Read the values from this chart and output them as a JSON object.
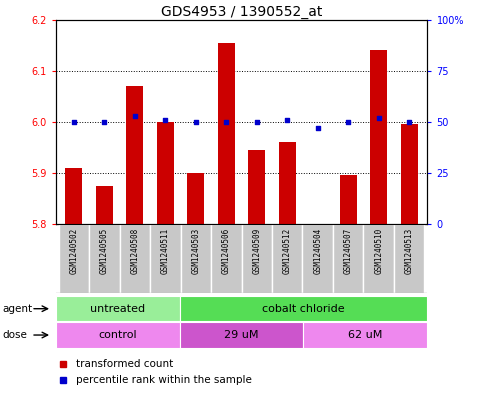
{
  "title": "GDS4953 / 1390552_at",
  "samples": [
    "GSM1240502",
    "GSM1240505",
    "GSM1240508",
    "GSM1240511",
    "GSM1240503",
    "GSM1240506",
    "GSM1240509",
    "GSM1240512",
    "GSM1240504",
    "GSM1240507",
    "GSM1240510",
    "GSM1240513"
  ],
  "red_values": [
    5.91,
    5.875,
    6.07,
    6.0,
    5.9,
    6.155,
    5.945,
    5.96,
    5.8,
    5.895,
    6.14,
    5.995
  ],
  "blue_percentile": [
    50,
    50,
    53,
    51,
    50,
    50,
    50,
    51,
    47,
    50,
    52,
    50
  ],
  "ylim_left": [
    5.8,
    6.2
  ],
  "ylim_right": [
    0,
    100
  ],
  "yticks_left": [
    5.8,
    5.9,
    6.0,
    6.1,
    6.2
  ],
  "yticks_right": [
    0,
    25,
    50,
    75,
    100
  ],
  "ytick_labels_right": [
    "0",
    "25",
    "50",
    "75",
    "100%"
  ],
  "agent_groups": [
    {
      "label": "untreated",
      "color": "#99EE99",
      "start": 0,
      "end": 4
    },
    {
      "label": "cobalt chloride",
      "color": "#55DD55",
      "start": 4,
      "end": 12
    }
  ],
  "dose_groups": [
    {
      "label": "control",
      "color": "#EE88EE",
      "start": 0,
      "end": 4
    },
    {
      "label": "29 uM",
      "color": "#CC55CC",
      "start": 4,
      "end": 8
    },
    {
      "label": "62 uM",
      "color": "#EE88EE",
      "start": 8,
      "end": 12
    }
  ],
  "bar_color": "#CC0000",
  "dot_color": "#0000CC",
  "bar_bottom": 5.8,
  "title_fontsize": 10,
  "tick_fontsize": 7,
  "sample_fontsize": 5.5,
  "row_fontsize": 8
}
